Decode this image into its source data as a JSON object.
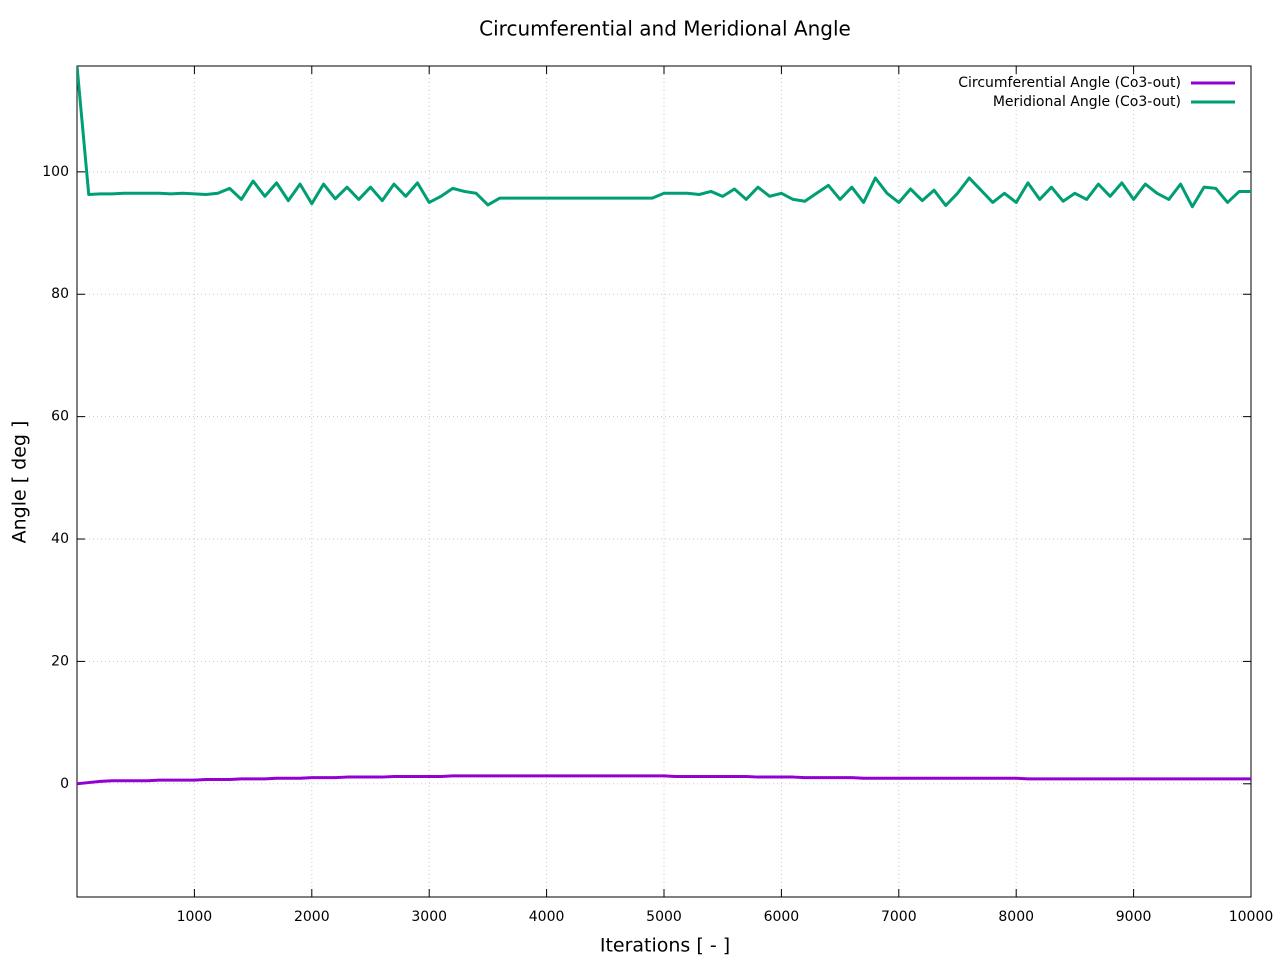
{
  "chart_data": {
    "type": "line",
    "title": "Circumferential and Meridional Angle",
    "x_label": "Iterations [ - ]",
    "y_label": "Angle [ deg ]",
    "x": [
      0,
      100,
      200,
      300,
      400,
      500,
      600,
      700,
      800,
      900,
      1000,
      1100,
      1200,
      1300,
      1400,
      1500,
      1600,
      1700,
      1800,
      1900,
      2000,
      2100,
      2200,
      2300,
      2400,
      2500,
      2600,
      2700,
      2800,
      2900,
      3000,
      3100,
      3200,
      3300,
      3400,
      3500,
      3600,
      3700,
      3800,
      3900,
      4000,
      4100,
      4200,
      4300,
      4400,
      4500,
      4600,
      4700,
      4800,
      4900,
      5000,
      5100,
      5200,
      5300,
      5400,
      5500,
      5600,
      5700,
      5800,
      5900,
      6000,
      6100,
      6200,
      6300,
      6400,
      6500,
      6600,
      6700,
      6800,
      6900,
      7000,
      7100,
      7200,
      7300,
      7400,
      7500,
      7600,
      7700,
      7800,
      7900,
      8000,
      8100,
      8200,
      8300,
      8400,
      8500,
      8600,
      8700,
      8800,
      8900,
      9000,
      9100,
      9200,
      9300,
      9400,
      9500,
      9600,
      9700,
      9800,
      9900,
      10000
    ],
    "series": [
      {
        "name": "Circumferential Angle (Co3-out)",
        "color": "#9400d3",
        "values": [
          0,
          0.2,
          0.4,
          0.5,
          0.5,
          0.5,
          0.5,
          0.6,
          0.6,
          0.6,
          0.6,
          0.7,
          0.7,
          0.7,
          0.8,
          0.8,
          0.8,
          0.9,
          0.9,
          0.9,
          1.0,
          1.0,
          1.0,
          1.1,
          1.1,
          1.1,
          1.1,
          1.2,
          1.2,
          1.2,
          1.2,
          1.2,
          1.3,
          1.3,
          1.3,
          1.3,
          1.3,
          1.3,
          1.3,
          1.3,
          1.3,
          1.3,
          1.3,
          1.3,
          1.3,
          1.3,
          1.3,
          1.3,
          1.3,
          1.3,
          1.3,
          1.2,
          1.2,
          1.2,
          1.2,
          1.2,
          1.2,
          1.2,
          1.1,
          1.1,
          1.1,
          1.1,
          1.0,
          1.0,
          1.0,
          1.0,
          1.0,
          0.9,
          0.9,
          0.9,
          0.9,
          0.9,
          0.9,
          0.9,
          0.9,
          0.9,
          0.9,
          0.9,
          0.9,
          0.9,
          0.9,
          0.8,
          0.8,
          0.8,
          0.8,
          0.8,
          0.8,
          0.8,
          0.8,
          0.8,
          0.8,
          0.8,
          0.8,
          0.8,
          0.8,
          0.8,
          0.8,
          0.8,
          0.8,
          0.8,
          0.8
        ]
      },
      {
        "name": "Meridional Angle (Co3-out)",
        "color": "#009e73",
        "values": [
          117.3,
          96.3,
          96.4,
          96.4,
          96.5,
          96.5,
          96.5,
          96.5,
          96.4,
          96.5,
          96.4,
          96.3,
          96.5,
          97.3,
          95.5,
          98.5,
          96.0,
          98.2,
          95.3,
          98.0,
          94.8,
          98.0,
          95.6,
          97.5,
          95.5,
          97.5,
          95.3,
          98.0,
          96.0,
          98.2,
          95.0,
          96.0,
          97.3,
          96.8,
          96.5,
          94.6,
          95.7,
          95.7,
          95.7,
          95.7,
          95.7,
          95.7,
          95.7,
          95.7,
          95.7,
          95.7,
          95.7,
          95.7,
          95.7,
          95.7,
          96.5,
          96.5,
          96.5,
          96.3,
          96.8,
          96.0,
          97.2,
          95.5,
          97.5,
          96.0,
          96.5,
          95.5,
          95.2,
          96.5,
          97.8,
          95.5,
          97.5,
          95.0,
          99.0,
          96.5,
          95.0,
          97.2,
          95.3,
          97.0,
          94.5,
          96.5,
          99.0,
          97.0,
          95.0,
          96.5,
          95.0,
          98.2,
          95.5,
          97.5,
          95.2,
          96.5,
          95.5,
          98.0,
          96.0,
          98.2,
          95.5,
          98.0,
          96.5,
          95.5,
          98.0,
          94.3,
          97.5,
          97.3,
          95.0,
          96.8,
          96.8
        ]
      }
    ],
    "xlim": [
      0,
      10000
    ],
    "xticks": [
      1000,
      2000,
      3000,
      4000,
      5000,
      6000,
      7000,
      8000,
      9000,
      10000
    ],
    "ylim": [
      -18.5,
      117.3
    ],
    "yticks": [
      0,
      20,
      40,
      60,
      80,
      100
    ],
    "grid": true,
    "legend": "top-right"
  }
}
